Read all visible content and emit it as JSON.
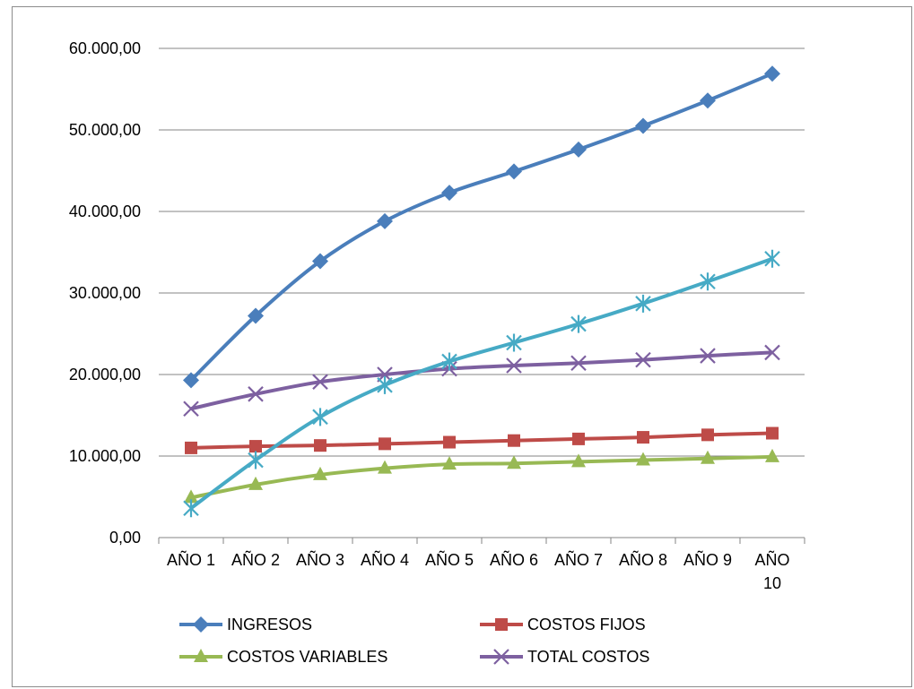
{
  "chart_data": {
    "type": "line",
    "title": "",
    "xlabel": "",
    "ylabel": "",
    "categories": [
      [
        "AÑO 1"
      ],
      [
        "AÑO 2"
      ],
      [
        "AÑO 3"
      ],
      [
        "AÑO 4"
      ],
      [
        "AÑO 5"
      ],
      [
        "AÑO 6"
      ],
      [
        "AÑO 7"
      ],
      [
        "AÑO 8"
      ],
      [
        "AÑO 9"
      ],
      [
        "AÑO",
        "10"
      ]
    ],
    "ylim": [
      0,
      60000
    ],
    "yticks": [
      "0,00",
      "10.000,00",
      "20.000,00",
      "30.000,00",
      "40.000,00",
      "50.000,00",
      "60.000,00"
    ],
    "grid": "horizontal",
    "legend_position": "bottom",
    "series": [
      {
        "name": "INGRESOS",
        "color": "#4a7ebb",
        "marker": "diamond",
        "values": [
          19300,
          27200,
          33900,
          38800,
          42300,
          44900,
          47600,
          50500,
          53600,
          56900
        ]
      },
      {
        "name": "COSTOS FIJOS",
        "color": "#be4b48",
        "marker": "square",
        "values": [
          11000,
          11200,
          11300,
          11500,
          11700,
          11900,
          12100,
          12300,
          12600,
          12800
        ]
      },
      {
        "name": "COSTOS VARIABLES",
        "color": "#98b954",
        "marker": "triangle",
        "values": [
          4900,
          6500,
          7700,
          8500,
          9000,
          9100,
          9300,
          9500,
          9700,
          9900
        ]
      },
      {
        "name": "TOTAL COSTOS",
        "color": "#7d60a0",
        "marker": "x",
        "values": [
          15800,
          17600,
          19100,
          20000,
          20700,
          21100,
          21400,
          21800,
          22300,
          22700
        ]
      },
      {
        "name": "",
        "color": "#46aac5",
        "marker": "star",
        "values": [
          3600,
          9500,
          14800,
          18700,
          21600,
          23900,
          26200,
          28700,
          31400,
          34200
        ]
      }
    ]
  }
}
